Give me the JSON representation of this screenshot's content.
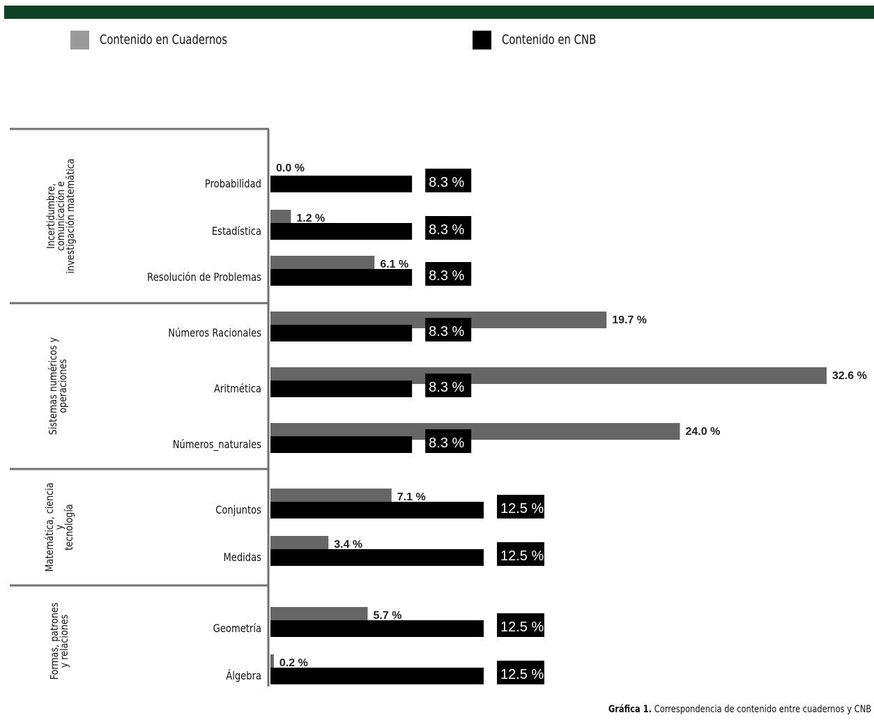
{
  "legend": {
    "series_a": {
      "label": "Contenido en Cuadernos",
      "color": "#9a9a9a"
    },
    "series_b": {
      "label": "Contenido en CNB",
      "color": "#000000"
    }
  },
  "caption": {
    "prefix": "Gráfica 1.",
    "text": "Correspondencia de contenido entre cuadernos y CNB"
  },
  "chart_data": {
    "type": "bar",
    "orientation": "horizontal",
    "unit": "%",
    "groups": [
      {
        "name": "Incertidumbre, comunicación e investigación matemática",
        "lines": [
          "Incertidumbre,",
          "comunicación e",
          "investigación matemática"
        ]
      },
      {
        "name": "Sistemas numéricos y operaciones",
        "lines": [
          "Sistemas numéricos y",
          "operaciones"
        ]
      },
      {
        "name": "Matemática, ciencia y tecnología",
        "lines": [
          "Matemática, ciencia",
          "y",
          "tecnología"
        ]
      },
      {
        "name": "Formas, patrones y relaciones",
        "lines": [
          "Formas, patrones",
          "y relaciones"
        ]
      }
    ],
    "categories": [
      "Probabilidad",
      "Estadística",
      "Resolución de Problemas",
      "Números Racionales",
      "Aritmética",
      "Números_naturales",
      "Conjuntos",
      "Medidas",
      "Geometría",
      "Álgebra"
    ],
    "category_group": [
      0,
      0,
      0,
      1,
      1,
      1,
      2,
      2,
      3,
      3
    ],
    "series": [
      {
        "name": "Contenido en Cuadernos",
        "values": [
          0.0,
          1.2,
          6.1,
          19.7,
          32.6,
          24.0,
          7.1,
          3.4,
          5.7,
          0.2
        ],
        "labels": [
          "0.0 %",
          "1.2 %",
          "6.1 %",
          "19.7 %",
          "32.6 %",
          "24.0 %",
          "7.1 %",
          "3.4 %",
          "5.7 %",
          "0.2 %"
        ]
      },
      {
        "name": "Contenido en CNB",
        "values": [
          8.3,
          8.3,
          8.3,
          8.3,
          8.3,
          8.3,
          12.5,
          12.5,
          12.5,
          12.5
        ],
        "labels": [
          "8.3 %",
          "8.3 %",
          "8.3 %",
          "8.3 %",
          "8.3 %",
          "8.3 %",
          "12.5 %",
          "12.5 %",
          "12.5 %",
          "12.5 %"
        ]
      }
    ],
    "xlim": [
      0,
      32.6
    ],
    "grid": false,
    "legend_position": "top"
  }
}
